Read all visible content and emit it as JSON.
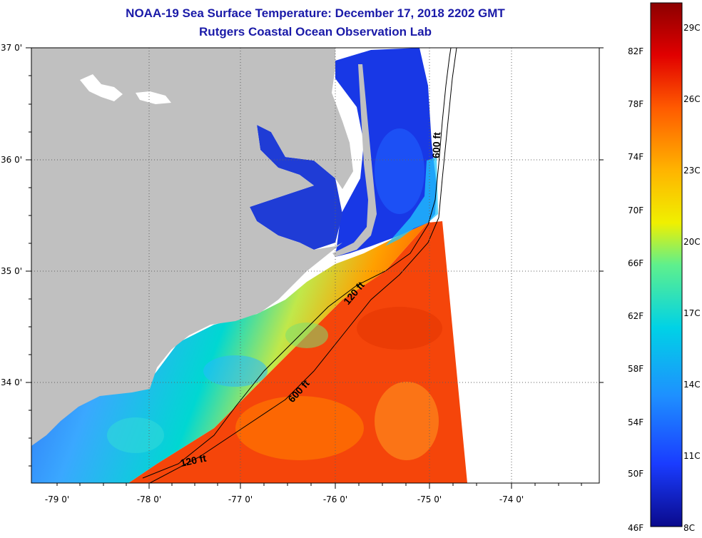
{
  "header": {
    "title": "NOAA-19 Sea Surface Temperature:  December 17, 2018 2202 GMT",
    "subtitle": "Rutgers Coastal Ocean Observation Lab"
  },
  "map": {
    "lat_labels": [
      "37 0'",
      "36 0'",
      "35 0'",
      "34 0'"
    ],
    "lon_labels": [
      "-79 0'",
      "-78 0'",
      "-77 0'",
      "-76 0'",
      "-75 0'",
      "-74 0'"
    ],
    "contours": [
      "600 ft",
      "120 ft",
      "600 ft",
      "120 ft"
    ]
  },
  "colorbar": {
    "fahrenheit": [
      "82F",
      "78F",
      "74F",
      "70F",
      "66F",
      "62F",
      "58F",
      "54F",
      "50F",
      "46F"
    ],
    "celsius": [
      "29C",
      "26C",
      "23C",
      "20C",
      "17C",
      "14C",
      "11C",
      "8C"
    ],
    "colors": [
      "#0a0a8c",
      "#1a3cff",
      "#1e90ff",
      "#00d2e6",
      "#5ff08c",
      "#f0f000",
      "#ffb400",
      "#ff5a00",
      "#e10000",
      "#8c0000"
    ]
  },
  "colors": {
    "land": "#c0c0c0",
    "title": "#1a1aa8",
    "no_data": "#ffffff"
  }
}
